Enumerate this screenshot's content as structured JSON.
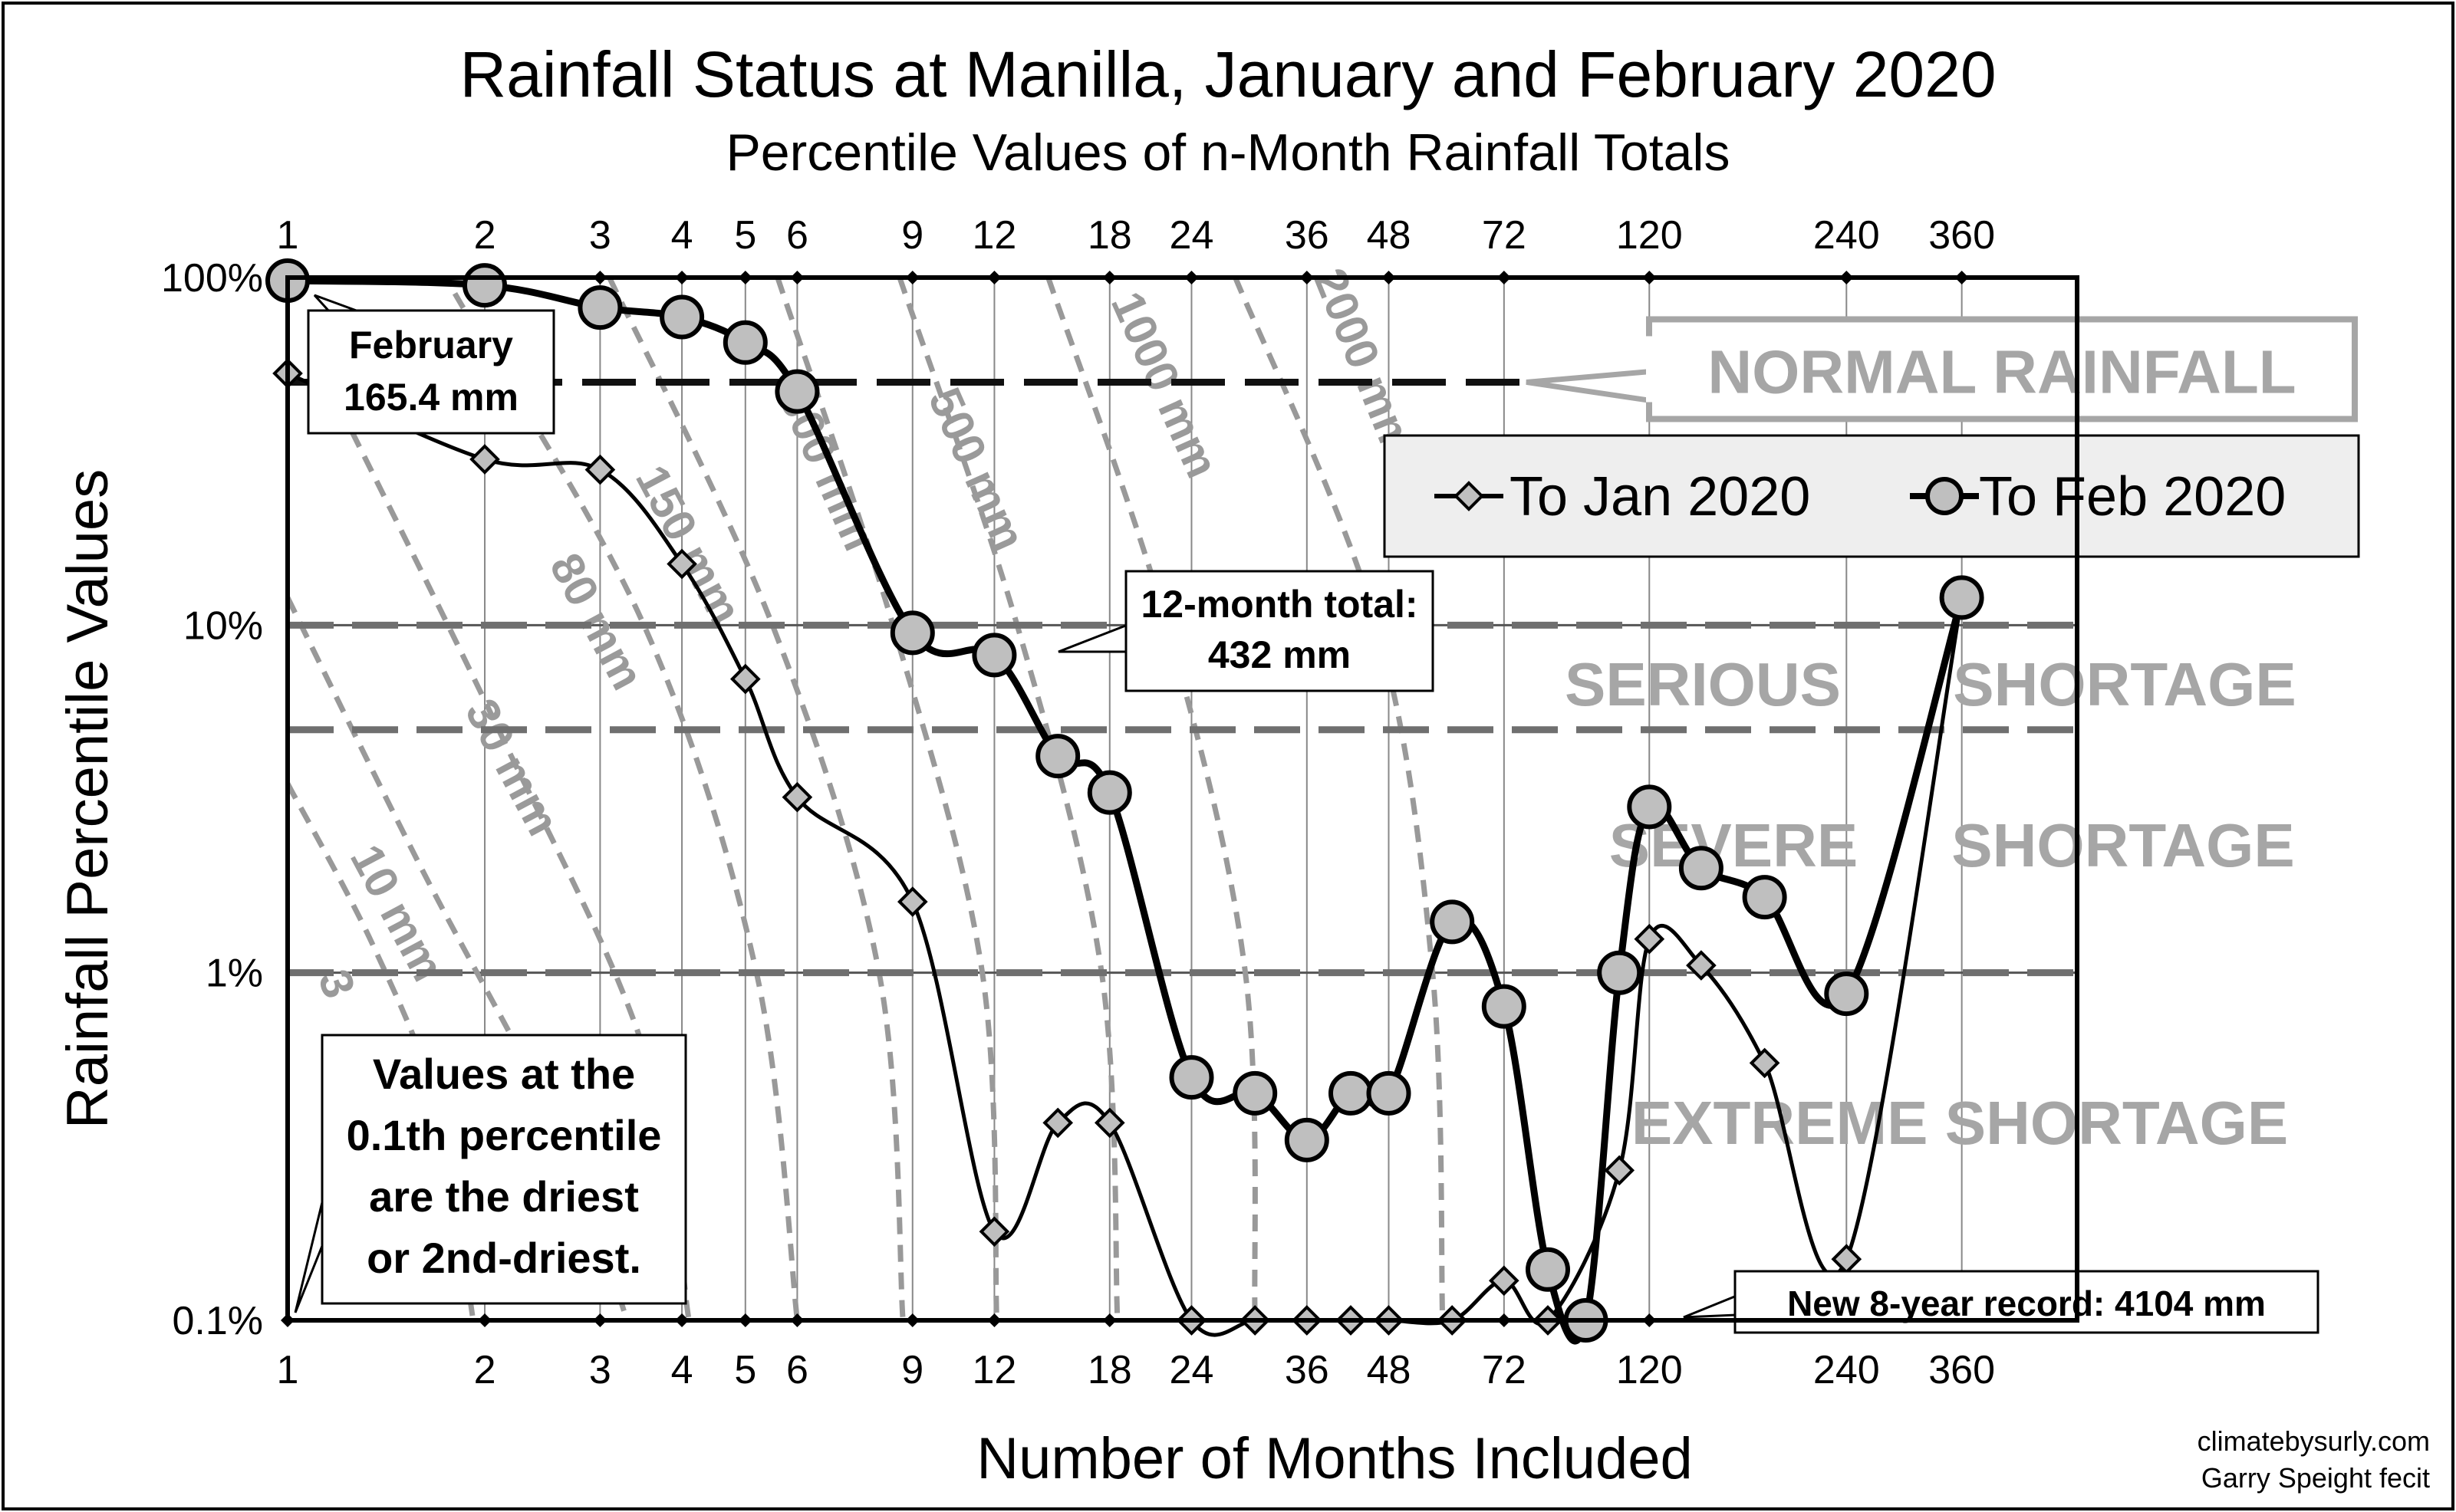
{
  "title": "Rainfall Status at Manilla, January and February 2020",
  "subtitle": "Percentile Values of n-Month Rainfall Totals",
  "chart_data": {
    "type": "line",
    "title": "Rainfall Status at Manilla, January and February 2020",
    "subtitle": "Percentile Values of n-Month Rainfall Totals",
    "xlabel": "Number of Months Included",
    "ylabel": "Rainfall Percentile Values",
    "x_scale": "log",
    "y_scale": "log",
    "xlim": [
      1,
      540
    ],
    "ylim": [
      0.1,
      100
    ],
    "x_ticks": [
      1,
      2,
      3,
      4,
      5,
      6,
      9,
      12,
      18,
      24,
      36,
      48,
      72,
      120,
      240,
      360
    ],
    "y_ticks": [
      {
        "value": 0.1,
        "label": "0.1%"
      },
      {
        "value": 1,
        "label": "1%"
      },
      {
        "value": 10,
        "label": "10%"
      },
      {
        "value": 100,
        "label": "100%"
      }
    ],
    "grid": true,
    "legend_position": "top-right",
    "series": [
      {
        "name": "To Jan 2020",
        "marker": "diamond",
        "color": "#000000",
        "x": [
          1,
          2,
          3,
          4,
          5,
          6,
          9,
          12,
          15,
          18,
          24,
          30,
          36,
          42,
          48,
          60,
          72,
          84,
          108,
          120,
          144,
          180,
          240,
          360
        ],
        "y": [
          53,
          30,
          28,
          15,
          7,
          3.2,
          1.6,
          0.18,
          0.37,
          0.37,
          0.1,
          0.1,
          0.1,
          0.1,
          0.1,
          0.1,
          0.13,
          0.1,
          0.27,
          1.25,
          1.05,
          0.55,
          0.15,
          12
        ]
      },
      {
        "name": "To Feb 2020",
        "marker": "circle",
        "color": "#000000",
        "x": [
          1,
          2,
          3,
          4,
          5,
          6,
          9,
          12,
          15,
          18,
          24,
          30,
          36,
          42,
          48,
          60,
          72,
          84,
          96,
          108,
          120,
          144,
          180,
          240,
          360
        ],
        "y": [
          98,
          95,
          82,
          77,
          65,
          47,
          9.5,
          8.2,
          4.2,
          3.3,
          0.5,
          0.45,
          0.33,
          0.45,
          0.45,
          1.4,
          0.8,
          0.14,
          0.1,
          1.0,
          3.0,
          2.0,
          1.65,
          0.87,
          12
        ]
      }
    ],
    "reference_lines": [
      {
        "y": 50,
        "label": "NORMAL RAINFALL"
      },
      {
        "y": 10
      },
      {
        "y": 5
      },
      {
        "y": 1
      }
    ],
    "zones": [
      {
        "words": [
          "SERIOUS",
          "SHORTAGE"
        ]
      },
      {
        "words": [
          "SEVERE",
          "SHORTAGE"
        ]
      },
      {
        "words": [
          "EXTREME SHORTAGE"
        ]
      }
    ],
    "isohyets": [
      {
        "label": "3"
      },
      {
        "label": "10 mm"
      },
      {
        "label": "30 mm"
      },
      {
        "label": "80 mm"
      },
      {
        "label": "150 mm"
      },
      {
        "label": "300 mm"
      },
      {
        "label": "500 mm"
      },
      {
        "label": "1000 mm"
      },
      {
        "label": "2000 mm"
      }
    ],
    "annotations": [
      {
        "lines": [
          "February",
          "165.4 mm"
        ]
      },
      {
        "lines": [
          "12-month total:",
          "432 mm"
        ]
      },
      {
        "lines": [
          "Values at the",
          "0.1th percentile",
          "are the driest",
          "or 2nd-driest."
        ]
      },
      {
        "lines": [
          "New 8-year record: 4104 mm"
        ]
      }
    ]
  },
  "credit": [
    "climatebysurly.com",
    "Garry Speight fecit"
  ]
}
